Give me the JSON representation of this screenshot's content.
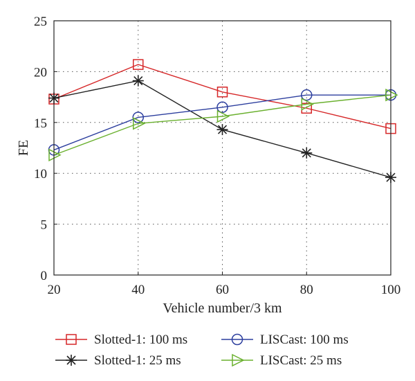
{
  "chart_data": {
    "type": "line",
    "title": "",
    "xlabel": "Vehicle number/3 km",
    "ylabel": "FE",
    "x": [
      20,
      40,
      60,
      80,
      100
    ],
    "xticks": [
      "20",
      "40",
      "60",
      "80",
      "100"
    ],
    "yticks": [
      "0",
      "5",
      "10",
      "15",
      "20",
      "25"
    ],
    "xlim": [
      20,
      100
    ],
    "ylim": [
      0,
      25
    ],
    "grid": true,
    "legend_position": "bottom",
    "series": [
      {
        "name": "Slotted-1: 100 ms",
        "color": "#d62728",
        "marker": "square",
        "values": [
          17.3,
          20.7,
          18.0,
          16.4,
          14.4
        ]
      },
      {
        "name": "Slotted-1: 25 ms",
        "color": "#222222",
        "marker": "star",
        "values": [
          17.4,
          19.1,
          14.3,
          12.0,
          9.6
        ]
      },
      {
        "name": "LISCast: 100 ms",
        "color": "#2c3e9e",
        "marker": "circle",
        "values": [
          12.3,
          15.5,
          16.5,
          17.7,
          17.7
        ]
      },
      {
        "name": "LISCast: 25 ms",
        "color": "#6ab02e",
        "marker": "triangle-right",
        "values": [
          11.8,
          14.9,
          15.6,
          16.8,
          17.7
        ]
      }
    ]
  }
}
